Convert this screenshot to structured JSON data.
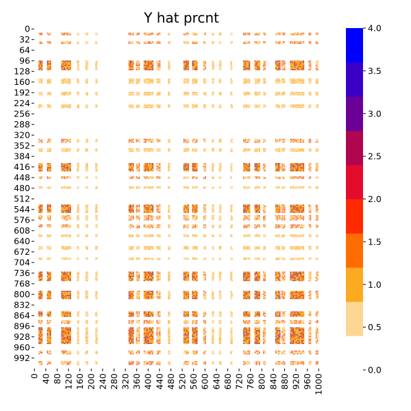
{
  "chart_data": {
    "type": "heatmap",
    "title": "Y hat prcnt",
    "xlabel": "",
    "ylabel": "",
    "n_rows": 1024,
    "n_cols": 1024,
    "x_ticks": [
      0,
      40,
      80,
      120,
      160,
      200,
      240,
      280,
      320,
      360,
      400,
      440,
      480,
      520,
      560,
      600,
      640,
      680,
      720,
      760,
      800,
      840,
      880,
      920,
      960,
      1000
    ],
    "y_ticks": [
      0,
      32,
      64,
      96,
      128,
      160,
      192,
      224,
      256,
      288,
      320,
      352,
      384,
      416,
      448,
      480,
      512,
      544,
      576,
      608,
      640,
      672,
      704,
      736,
      768,
      800,
      832,
      864,
      896,
      928,
      960,
      992
    ],
    "colorbar": {
      "range": [
        0.0,
        4.0
      ],
      "ticks": [
        "0.0",
        "0.5",
        "1.0",
        "1.5",
        "2.0",
        "2.5",
        "3.0",
        "3.5",
        "4.0"
      ],
      "colors": [
        "#ffffff",
        "#fed693",
        "#fcaa20",
        "#ff6d00",
        "#ff2a00",
        "#e40c2c",
        "#b0054f",
        "#6b0099",
        "#3a00c8",
        "#0000ff"
      ]
    },
    "row_bands": [
      {
        "start": 12,
        "end": 20,
        "level": "mid"
      },
      {
        "start": 38,
        "end": 46,
        "level": "mid"
      },
      {
        "start": 96,
        "end": 125,
        "level": "high"
      },
      {
        "start": 150,
        "end": 165,
        "level": "low"
      },
      {
        "start": 190,
        "end": 200,
        "level": "low"
      },
      {
        "start": 228,
        "end": 238,
        "level": "low"
      },
      {
        "start": 332,
        "end": 342,
        "level": "mid"
      },
      {
        "start": 360,
        "end": 370,
        "level": "low"
      },
      {
        "start": 405,
        "end": 430,
        "level": "high"
      },
      {
        "start": 445,
        "end": 452,
        "level": "mid"
      },
      {
        "start": 475,
        "end": 482,
        "level": "low"
      },
      {
        "start": 530,
        "end": 555,
        "level": "high"
      },
      {
        "start": 562,
        "end": 575,
        "level": "mid"
      },
      {
        "start": 590,
        "end": 600,
        "level": "mid"
      },
      {
        "start": 620,
        "end": 628,
        "level": "low"
      },
      {
        "start": 655,
        "end": 665,
        "level": "low"
      },
      {
        "start": 690,
        "end": 696,
        "level": "low"
      },
      {
        "start": 732,
        "end": 760,
        "level": "high"
      },
      {
        "start": 790,
        "end": 815,
        "level": "high"
      },
      {
        "start": 852,
        "end": 868,
        "level": "high"
      },
      {
        "start": 878,
        "end": 888,
        "level": "mid"
      },
      {
        "start": 900,
        "end": 950,
        "level": "high"
      },
      {
        "start": 970,
        "end": 980,
        "level": "mid"
      },
      {
        "start": 1002,
        "end": 1012,
        "level": "mid"
      }
    ],
    "col_bands": [
      {
        "start": 15,
        "end": 30,
        "level": "high"
      },
      {
        "start": 45,
        "end": 60,
        "level": "high"
      },
      {
        "start": 95,
        "end": 130,
        "level": "high"
      },
      {
        "start": 150,
        "end": 158,
        "level": "low"
      },
      {
        "start": 180,
        "end": 190,
        "level": "low"
      },
      {
        "start": 215,
        "end": 222,
        "level": "low"
      },
      {
        "start": 332,
        "end": 350,
        "level": "high"
      },
      {
        "start": 358,
        "end": 372,
        "level": "mid"
      },
      {
        "start": 385,
        "end": 420,
        "level": "high"
      },
      {
        "start": 430,
        "end": 445,
        "level": "mid"
      },
      {
        "start": 470,
        "end": 478,
        "level": "low"
      },
      {
        "start": 525,
        "end": 545,
        "level": "high"
      },
      {
        "start": 555,
        "end": 575,
        "level": "high"
      },
      {
        "start": 595,
        "end": 605,
        "level": "mid"
      },
      {
        "start": 625,
        "end": 632,
        "level": "low"
      },
      {
        "start": 650,
        "end": 658,
        "level": "low"
      },
      {
        "start": 690,
        "end": 696,
        "level": "low"
      },
      {
        "start": 735,
        "end": 760,
        "level": "high"
      },
      {
        "start": 775,
        "end": 795,
        "level": "high"
      },
      {
        "start": 805,
        "end": 815,
        "level": "mid"
      },
      {
        "start": 848,
        "end": 865,
        "level": "high"
      },
      {
        "start": 870,
        "end": 882,
        "level": "mid"
      },
      {
        "start": 900,
        "end": 950,
        "level": "high"
      },
      {
        "start": 965,
        "end": 975,
        "level": "mid"
      },
      {
        "start": 990,
        "end": 1000,
        "level": "mid"
      }
    ]
  }
}
